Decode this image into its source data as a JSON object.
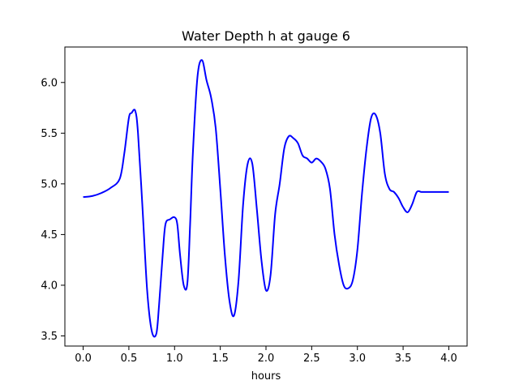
{
  "chart_data": {
    "type": "line",
    "title": "Water Depth h at gauge 6",
    "xlabel": "hours",
    "ylabel": "",
    "xlim": [
      -0.2,
      4.2
    ],
    "ylim": [
      3.4,
      6.35
    ],
    "xticks": [
      0.0,
      0.5,
      1.0,
      1.5,
      2.0,
      2.5,
      3.0,
      3.5,
      4.0
    ],
    "xtick_labels": [
      "0.0",
      "0.5",
      "1.0",
      "1.5",
      "2.0",
      "2.5",
      "3.0",
      "3.5",
      "4.0"
    ],
    "yticks": [
      3.5,
      4.0,
      4.5,
      5.0,
      5.5,
      6.0
    ],
    "ytick_labels": [
      "3.5",
      "4.0",
      "4.5",
      "5.0",
      "5.5",
      "6.0"
    ],
    "grid": false,
    "legend": "none",
    "series": [
      {
        "color": "#0000ff",
        "x": [
          0.0,
          0.1,
          0.2,
          0.3,
          0.4,
          0.45,
          0.5,
          0.53,
          0.57,
          0.6,
          0.65,
          0.7,
          0.75,
          0.8,
          0.83,
          0.87,
          0.9,
          0.95,
          1.0,
          1.03,
          1.06,
          1.1,
          1.14,
          1.17,
          1.2,
          1.25,
          1.3,
          1.35,
          1.4,
          1.45,
          1.5,
          1.55,
          1.6,
          1.65,
          1.7,
          1.75,
          1.8,
          1.85,
          1.9,
          1.95,
          2.0,
          2.05,
          2.1,
          2.15,
          2.2,
          2.25,
          2.3,
          2.35,
          2.4,
          2.45,
          2.5,
          2.55,
          2.6,
          2.65,
          2.7,
          2.75,
          2.8,
          2.85,
          2.9,
          2.95,
          3.0,
          3.05,
          3.1,
          3.15,
          3.2,
          3.25,
          3.3,
          3.35,
          3.4,
          3.45,
          3.5,
          3.55,
          3.6,
          3.65,
          3.7,
          3.75,
          3.8,
          3.85,
          3.9,
          3.95,
          4.0
        ],
        "values": [
          4.87,
          4.88,
          4.91,
          4.96,
          5.05,
          5.3,
          5.65,
          5.7,
          5.72,
          5.5,
          4.75,
          3.95,
          3.55,
          3.52,
          3.8,
          4.3,
          4.6,
          4.65,
          4.67,
          4.6,
          4.3,
          4.0,
          4.02,
          4.6,
          5.3,
          6.05,
          6.22,
          6.02,
          5.85,
          5.55,
          4.95,
          4.3,
          3.85,
          3.7,
          4.05,
          4.8,
          5.2,
          5.2,
          4.75,
          4.25,
          3.95,
          4.1,
          4.7,
          5.0,
          5.35,
          5.47,
          5.45,
          5.4,
          5.28,
          5.25,
          5.21,
          5.25,
          5.22,
          5.15,
          4.95,
          4.5,
          4.2,
          4.0,
          3.97,
          4.05,
          4.35,
          4.9,
          5.35,
          5.65,
          5.68,
          5.5,
          5.1,
          4.95,
          4.92,
          4.86,
          4.77,
          4.72,
          4.8,
          4.92,
          4.92,
          4.92,
          4.92,
          4.92,
          4.92,
          4.92,
          4.92
        ]
      }
    ]
  }
}
